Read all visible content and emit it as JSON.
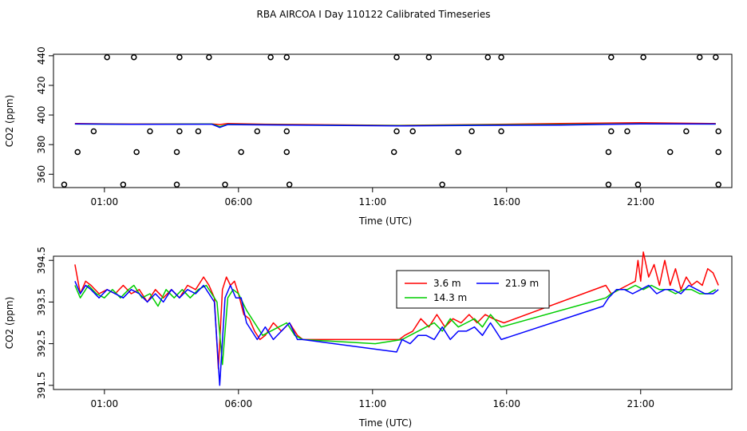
{
  "title": "RBA AIRCOA I  Day 110122  Calibrated Timeseries",
  "chart_data": [
    {
      "type": "line",
      "xlabel": "Time (UTC)",
      "ylabel": "CO2 (ppm)",
      "x_unit": "hours UTC",
      "xlim": [
        -0.9,
        24.4
      ],
      "ylim": [
        351,
        441
      ],
      "xticks": [
        1,
        6,
        11,
        16,
        21
      ],
      "xtick_labels": [
        "01:00",
        "06:00",
        "11:00",
        "16:00",
        "21:00"
      ],
      "yticks": [
        360,
        380,
        400,
        420,
        440
      ],
      "ytick_labels": [
        "360",
        "380",
        "400",
        "420",
        "440"
      ],
      "series": [
        {
          "color": "#ff0000",
          "x": [
            -0.1,
            2.0,
            5.0,
            5.3,
            5.6,
            7.0,
            12.0,
            15.0,
            18.0,
            21.0,
            23.8
          ],
          "y": [
            394.2,
            393.9,
            394.0,
            393.5,
            394.2,
            393.8,
            393.0,
            393.6,
            394.2,
            394.8,
            394.2
          ]
        },
        {
          "color": "#00cd00",
          "x": [
            -0.1,
            2.0,
            5.0,
            5.3,
            5.6,
            7.0,
            12.0,
            15.0,
            18.0,
            21.0,
            23.8
          ],
          "y": [
            393.9,
            393.8,
            393.9,
            392.2,
            393.7,
            393.4,
            392.8,
            393.3,
            393.5,
            394.1,
            393.9
          ]
        },
        {
          "color": "#0000ff",
          "x": [
            -0.1,
            2.0,
            5.0,
            5.3,
            5.6,
            7.0,
            12.0,
            15.0,
            18.0,
            21.0,
            23.8
          ],
          "y": [
            394.0,
            393.7,
            393.8,
            391.6,
            393.5,
            393.3,
            392.6,
            393.0,
            393.2,
            394.0,
            393.9
          ]
        }
      ],
      "markers": {
        "x": [
          1.1,
          2.1,
          3.8,
          4.9,
          7.2,
          7.8,
          11.9,
          13.1,
          15.3,
          15.8,
          19.9,
          21.1,
          23.2,
          23.8,
          0.6,
          2.7,
          3.8,
          4.5,
          6.7,
          7.8,
          11.9,
          12.5,
          14.7,
          15.8,
          19.9,
          20.5,
          22.7,
          23.9,
          0.0,
          2.2,
          3.7,
          6.1,
          7.8,
          11.8,
          14.2,
          19.8,
          22.1,
          23.9,
          -0.5,
          1.7,
          3.7,
          5.5,
          7.9,
          13.6,
          19.8,
          20.9,
          23.9
        ],
        "y": [
          439,
          439,
          439,
          439,
          439,
          439,
          439,
          439,
          439,
          439,
          439,
          439,
          439,
          439,
          389,
          389,
          389,
          389,
          389,
          389,
          389,
          389,
          389,
          389,
          389,
          389,
          389,
          389,
          375,
          375,
          375,
          375,
          375,
          375,
          375,
          375,
          375,
          375,
          353,
          353,
          353,
          353,
          353,
          353,
          353,
          353,
          353
        ]
      }
    },
    {
      "type": "line",
      "xlabel": "Time (UTC)",
      "ylabel": "CO2 (ppm)",
      "x_unit": "hours UTC",
      "xlim": [
        -0.9,
        24.4
      ],
      "ylim": [
        391.4,
        394.6
      ],
      "xticks": [
        1,
        6,
        11,
        16,
        21
      ],
      "xtick_labels": [
        "01:00",
        "06:00",
        "11:00",
        "16:00",
        "21:00"
      ],
      "yticks": [
        391.5,
        392.5,
        393.5,
        394.5
      ],
      "ytick_labels": [
        "391.5",
        "392.5",
        "393.5",
        "394.5"
      ],
      "legend": {
        "position": "top-center",
        "columns": 2
      },
      "series": [
        {
          "name": "3.6 m",
          "color": "#ff0000",
          "x": [
            -0.1,
            0.1,
            0.3,
            0.5,
            0.8,
            1.1,
            1.4,
            1.7,
            2.0,
            2.3,
            2.6,
            2.9,
            3.2,
            3.5,
            3.8,
            4.1,
            4.4,
            4.7,
            4.9,
            5.1,
            5.25,
            5.4,
            5.55,
            5.7,
            5.85,
            6.0,
            6.2,
            6.4,
            6.6,
            6.8,
            7.0,
            7.3,
            7.6,
            7.9,
            8.2,
            8.4,
            12.0,
            12.2,
            12.5,
            12.8,
            13.1,
            13.4,
            13.7,
            14.0,
            14.3,
            14.6,
            14.9,
            15.2,
            15.5,
            15.9,
            19.7,
            19.9,
            20.2,
            20.5,
            20.8,
            20.9,
            21.0,
            21.1,
            21.3,
            21.5,
            21.7,
            21.9,
            22.1,
            22.3,
            22.5,
            22.7,
            22.9,
            23.1,
            23.3,
            23.5,
            23.7,
            23.9
          ],
          "y": [
            394.4,
            393.7,
            394.0,
            393.9,
            393.7,
            393.8,
            393.7,
            393.9,
            393.7,
            393.8,
            393.5,
            393.8,
            393.6,
            393.8,
            393.6,
            393.9,
            393.8,
            394.1,
            393.9,
            393.6,
            391.9,
            393.8,
            394.1,
            393.9,
            394.0,
            393.7,
            393.2,
            393.1,
            392.8,
            392.6,
            392.7,
            393.0,
            392.8,
            393.0,
            392.7,
            392.6,
            392.6,
            392.7,
            392.8,
            393.1,
            392.9,
            393.2,
            392.9,
            393.1,
            393.0,
            393.2,
            393.0,
            393.2,
            393.1,
            393.0,
            393.9,
            393.7,
            393.8,
            393.9,
            394.0,
            394.5,
            394.0,
            394.7,
            394.1,
            394.4,
            393.9,
            394.5,
            393.9,
            394.3,
            393.8,
            394.1,
            393.9,
            394.0,
            393.9,
            394.3,
            394.2,
            393.9
          ]
        },
        {
          "name": "14.3 m",
          "color": "#00cd00",
          "x": [
            -0.1,
            0.1,
            0.4,
            0.7,
            1.0,
            1.3,
            1.6,
            1.9,
            2.1,
            2.4,
            2.7,
            3.0,
            3.3,
            3.6,
            3.9,
            4.2,
            4.5,
            4.8,
            5.0,
            5.2,
            5.4,
            5.6,
            5.8,
            6.0,
            6.3,
            6.6,
            6.9,
            7.2,
            7.5,
            7.8,
            8.1,
            8.4,
            11.1,
            12.1,
            12.4,
            12.7,
            13.0,
            13.3,
            13.6,
            13.9,
            14.2,
            14.5,
            14.8,
            15.1,
            15.4,
            15.8,
            19.7,
            19.9,
            20.2,
            20.5,
            20.8,
            21.1,
            21.4,
            21.7,
            22.0,
            22.3,
            22.6,
            22.9,
            23.2,
            23.5,
            23.8
          ],
          "y": [
            393.9,
            393.6,
            393.9,
            393.7,
            393.6,
            393.8,
            393.6,
            393.8,
            393.9,
            393.6,
            393.7,
            393.4,
            393.8,
            393.6,
            393.8,
            393.6,
            393.8,
            393.9,
            393.7,
            393.5,
            392.0,
            393.6,
            393.8,
            393.7,
            393.3,
            393.0,
            392.7,
            392.8,
            392.9,
            393.0,
            392.7,
            392.6,
            392.5,
            392.6,
            392.7,
            392.8,
            392.9,
            393.0,
            392.8,
            393.1,
            392.9,
            393.0,
            393.1,
            392.9,
            393.2,
            392.9,
            393.6,
            393.7,
            393.8,
            393.8,
            393.9,
            393.8,
            393.9,
            393.8,
            393.8,
            393.7,
            393.8,
            393.8,
            393.7,
            393.7,
            393.8
          ]
        },
        {
          "name": "21.9 m",
          "color": "#0000ff",
          "x": [
            -0.1,
            0.1,
            0.3,
            0.5,
            0.8,
            1.1,
            1.4,
            1.7,
            2.0,
            2.3,
            2.6,
            2.9,
            3.2,
            3.5,
            3.8,
            4.1,
            4.4,
            4.7,
            4.9,
            5.1,
            5.3,
            5.5,
            5.7,
            5.9,
            6.1,
            6.3,
            6.5,
            6.7,
            7.0,
            7.3,
            7.6,
            7.9,
            8.2,
            8.4,
            11.9,
            12.1,
            12.4,
            12.7,
            13.0,
            13.3,
            13.6,
            13.9,
            14.2,
            14.5,
            14.8,
            15.1,
            15.4,
            15.8,
            19.6,
            19.8,
            20.1,
            20.4,
            20.7,
            21.0,
            21.3,
            21.6,
            21.9,
            22.2,
            22.5,
            22.8,
            23.1,
            23.4,
            23.7,
            23.9
          ],
          "y": [
            394.0,
            393.7,
            393.9,
            393.8,
            393.6,
            393.8,
            393.7,
            393.6,
            393.8,
            393.7,
            393.5,
            393.7,
            393.5,
            393.8,
            393.6,
            393.8,
            393.7,
            393.9,
            393.7,
            393.5,
            391.5,
            393.6,
            393.9,
            393.6,
            393.6,
            393.0,
            392.8,
            392.6,
            392.9,
            392.6,
            392.8,
            393.0,
            392.6,
            392.6,
            392.3,
            392.6,
            392.5,
            392.7,
            392.7,
            392.6,
            392.9,
            392.6,
            392.8,
            392.8,
            392.9,
            392.7,
            393.0,
            392.6,
            393.4,
            393.6,
            393.8,
            393.8,
            393.7,
            393.8,
            393.9,
            393.7,
            393.8,
            393.8,
            393.7,
            393.9,
            393.8,
            393.7,
            393.7,
            393.8
          ]
        }
      ]
    }
  ]
}
